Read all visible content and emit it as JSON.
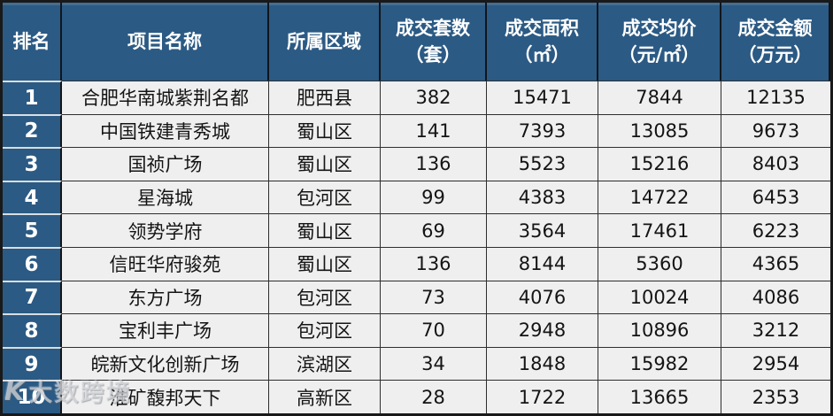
{
  "header": {
    "columns": [
      {
        "label": "排名",
        "unit": ""
      },
      {
        "label": "项目名称",
        "unit": ""
      },
      {
        "label": "所属区域",
        "unit": ""
      },
      {
        "label": "成交套数",
        "unit": "（套）"
      },
      {
        "label": "成交面积",
        "unit": "（㎡）"
      },
      {
        "label": "成交均价",
        "unit": "（元/㎡）"
      },
      {
        "label": "成交金额",
        "unit": "（万元）"
      }
    ]
  },
  "chart_data": {
    "type": "table",
    "title": "",
    "columns": [
      "排名",
      "项目名称",
      "所属区域",
      "成交套数（套）",
      "成交面积（㎡）",
      "成交均价（元/㎡）",
      "成交金额（万元）"
    ],
    "rows": [
      [
        1,
        "合肥华南城紫荆名都",
        "肥西县",
        382,
        15471,
        7844,
        12135
      ],
      [
        2,
        "中国铁建青秀城",
        "蜀山区",
        141,
        7393,
        13085,
        9673
      ],
      [
        3,
        "国祯广场",
        "蜀山区",
        136,
        5523,
        15216,
        8403
      ],
      [
        4,
        "星海城",
        "包河区",
        99,
        4383,
        14722,
        6453
      ],
      [
        5,
        "领势学府",
        "蜀山区",
        69,
        3564,
        17461,
        6223
      ],
      [
        6,
        "信旺华府骏苑",
        "蜀山区",
        136,
        8144,
        5360,
        4365
      ],
      [
        7,
        "东方广场",
        "包河区",
        73,
        4076,
        10024,
        4086
      ],
      [
        8,
        "宝利丰广场",
        "包河区",
        70,
        2948,
        10896,
        3212
      ],
      [
        9,
        "皖新文化创新广场",
        "滨湖区",
        34,
        1848,
        15982,
        2954
      ],
      [
        10,
        "淮矿馥邦天下",
        "高新区",
        28,
        1722,
        13665,
        2353
      ]
    ]
  },
  "watermark": {
    "logo": "K",
    "text": "大数跨境"
  },
  "colors": {
    "header_bg": "#2b5a84",
    "row_bg": "#efeff0",
    "grid_line": "#2e2e2e",
    "header_text": "#ffffff",
    "body_text": "#141414"
  }
}
